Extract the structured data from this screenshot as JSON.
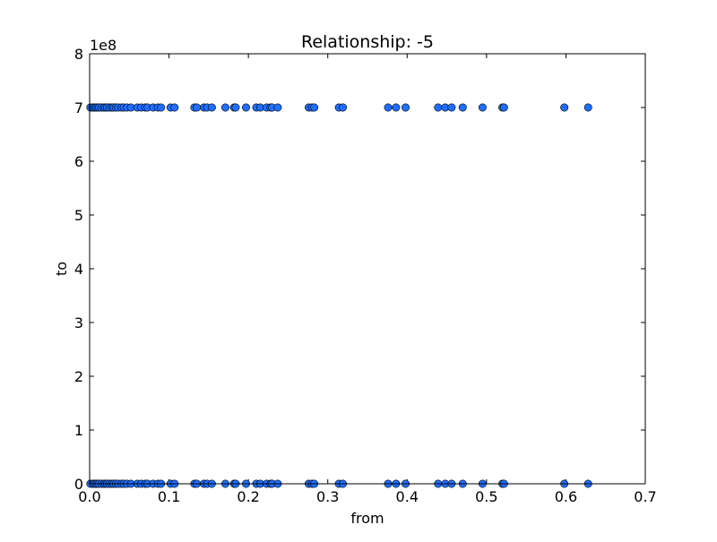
{
  "chart_data": {
    "type": "scatter",
    "title": "Relationship: -5",
    "xlabel": "from",
    "ylabel": "to",
    "xlim": [
      0.0,
      0.7
    ],
    "ylim": [
      0,
      8
    ],
    "y_offset_label": "1e8",
    "x_ticks": [
      "0.0",
      "0.1",
      "0.2",
      "0.3",
      "0.4",
      "0.5",
      "0.6",
      "0.7"
    ],
    "y_ticks": [
      "0",
      "1",
      "2",
      "3",
      "4",
      "5",
      "6",
      "7",
      "8"
    ],
    "grid": false,
    "marker_color": "#1f6fff",
    "marker_edge_color": "#000000",
    "series": [
      {
        "x": [
          0.001,
          0.004,
          0.006,
          0.008,
          0.01,
          0.012,
          0.015,
          0.018,
          0.02,
          0.022,
          0.025,
          0.028,
          0.03,
          0.033,
          0.036,
          0.04,
          0.043,
          0.047,
          0.052,
          0.06,
          0.065,
          0.07,
          0.073,
          0.08,
          0.086,
          0.09,
          0.102,
          0.107,
          0.132,
          0.135,
          0.144,
          0.148,
          0.154,
          0.171,
          0.182,
          0.184,
          0.197,
          0.21,
          0.215,
          0.223,
          0.228,
          0.23,
          0.237,
          0.276,
          0.28,
          0.283,
          0.314,
          0.319,
          0.376,
          0.386,
          0.398,
          0.439,
          0.448,
          0.456,
          0.47,
          0.495,
          0.52,
          0.522,
          0.598,
          0.628,
          0.001,
          0.004,
          0.006,
          0.008,
          0.01,
          0.012,
          0.015,
          0.018,
          0.02,
          0.022,
          0.025,
          0.028,
          0.03,
          0.033,
          0.036,
          0.04,
          0.043,
          0.047,
          0.052,
          0.06,
          0.065,
          0.07,
          0.073,
          0.08,
          0.086,
          0.09,
          0.102,
          0.107,
          0.132,
          0.135,
          0.144,
          0.148,
          0.154,
          0.171,
          0.182,
          0.184,
          0.197,
          0.21,
          0.215,
          0.223,
          0.228,
          0.23,
          0.237,
          0.276,
          0.28,
          0.283,
          0.314,
          0.319,
          0.376,
          0.386,
          0.398,
          0.439,
          0.448,
          0.456,
          0.47,
          0.495,
          0.52,
          0.522,
          0.598,
          0.628
        ],
        "y": [
          7,
          7,
          7,
          7,
          7,
          7,
          7,
          7,
          7,
          7,
          7,
          7,
          7,
          7,
          7,
          7,
          7,
          7,
          7,
          7,
          7,
          7,
          7,
          7,
          7,
          7,
          7,
          7,
          7,
          7,
          7,
          7,
          7,
          7,
          7,
          7,
          7,
          7,
          7,
          7,
          7,
          7,
          7,
          7,
          7,
          7,
          7,
          7,
          7,
          7,
          7,
          7,
          7,
          7,
          7,
          7,
          7,
          7,
          7,
          7,
          0,
          0,
          0,
          0,
          0,
          0,
          0,
          0,
          0,
          0,
          0,
          0,
          0,
          0,
          0,
          0,
          0,
          0,
          0,
          0,
          0,
          0,
          0,
          0,
          0,
          0,
          0,
          0,
          0,
          0,
          0,
          0,
          0,
          0,
          0,
          0,
          0,
          0,
          0,
          0,
          0,
          0,
          0,
          0,
          0,
          0,
          0,
          0,
          0,
          0,
          0,
          0,
          0,
          0,
          0,
          0,
          0,
          0,
          0,
          0
        ]
      }
    ]
  }
}
